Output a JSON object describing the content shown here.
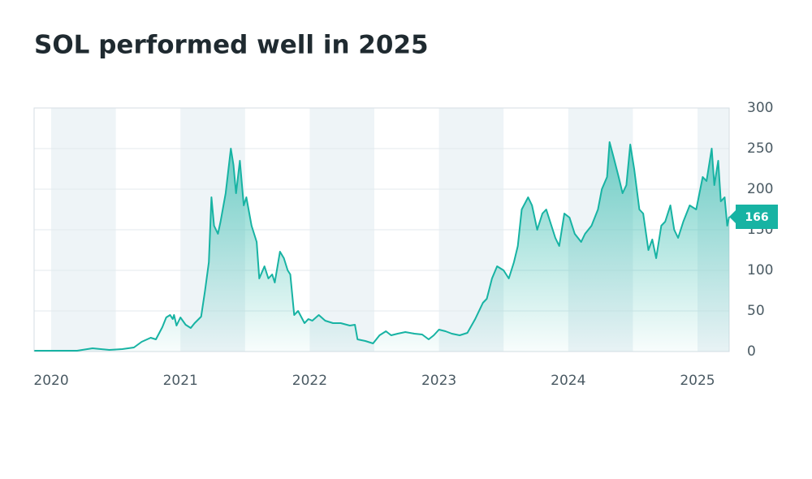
{
  "chart_data": {
    "type": "area",
    "title": "SOL performed well in 2025",
    "x": [
      2019.87,
      2020.0,
      2020.2,
      2020.32,
      2020.45,
      2020.55,
      2020.64,
      2020.7,
      2020.77,
      2020.81,
      2020.86,
      2020.89,
      2020.92,
      2020.94,
      2020.95,
      2020.97,
      2021.0,
      2021.04,
      2021.08,
      2021.11,
      2021.16,
      2021.19,
      2021.22,
      2021.24,
      2021.26,
      2021.29,
      2021.31,
      2021.35,
      2021.39,
      2021.41,
      2021.43,
      2021.46,
      2021.49,
      2021.51,
      2021.55,
      2021.59,
      2021.61,
      2021.65,
      2021.68,
      2021.71,
      2021.73,
      2021.77,
      2021.8,
      2021.83,
      2021.85,
      2021.88,
      2021.91,
      2021.96,
      2021.99,
      2022.02,
      2022.07,
      2022.12,
      2022.18,
      2022.24,
      2022.31,
      2022.35,
      2022.37,
      2022.43,
      2022.49,
      2022.54,
      2022.59,
      2022.63,
      2022.68,
      2022.74,
      2022.81,
      2022.87,
      2022.92,
      2022.96,
      2023.0,
      2023.05,
      2023.1,
      2023.16,
      2023.22,
      2023.28,
      2023.34,
      2023.37,
      2023.41,
      2023.45,
      2023.5,
      2023.54,
      2023.58,
      2023.61,
      2023.64,
      2023.69,
      2023.72,
      2023.76,
      2023.8,
      2023.83,
      2023.86,
      2023.9,
      2023.93,
      2023.97,
      2024.01,
      2024.05,
      2024.1,
      2024.13,
      2024.18,
      2024.23,
      2024.26,
      2024.3,
      2024.32,
      2024.35,
      2024.39,
      2024.42,
      2024.45,
      2024.48,
      2024.51,
      2024.55,
      2024.58,
      2024.62,
      2024.65,
      2024.68,
      2024.72,
      2024.75,
      2024.79,
      2024.82,
      2024.85,
      2024.89,
      2024.94,
      2024.99,
      2025.04,
      2025.07,
      2025.11,
      2025.13,
      2025.16,
      2025.18,
      2025.21,
      2025.23,
      2025.245
    ],
    "series": [
      {
        "name": "SOL",
        "color": "#17b3a3",
        "values": [
          1,
          1,
          1,
          4,
          2,
          3,
          5,
          12,
          17,
          15,
          30,
          42,
          45,
          40,
          45,
          32,
          42,
          33,
          29,
          35,
          43,
          75,
          110,
          190,
          155,
          145,
          160,
          195,
          250,
          230,
          195,
          235,
          180,
          190,
          155,
          135,
          90,
          105,
          90,
          95,
          85,
          123,
          115,
          100,
          95,
          45,
          50,
          35,
          40,
          38,
          45,
          38,
          35,
          35,
          32,
          33,
          15,
          13,
          10,
          20,
          25,
          20,
          22,
          24,
          22,
          21,
          15,
          20,
          27,
          25,
          22,
          20,
          23,
          40,
          60,
          65,
          90,
          105,
          100,
          90,
          110,
          130,
          175,
          190,
          180,
          150,
          170,
          175,
          160,
          140,
          130,
          170,
          165,
          145,
          135,
          145,
          155,
          175,
          200,
          215,
          258,
          240,
          215,
          195,
          205,
          255,
          225,
          175,
          170,
          125,
          138,
          115,
          155,
          160,
          180,
          150,
          140,
          160,
          180,
          175,
          215,
          210,
          250,
          205,
          235,
          185,
          190,
          155,
          166
        ]
      }
    ],
    "xlim": [
      2019.868,
      2025.245
    ],
    "xticks": [
      2020,
      2021,
      2022,
      2023,
      2024,
      2025
    ],
    "ylim": [
      0,
      300
    ],
    "yticks": [
      0,
      50,
      100,
      150,
      200,
      250,
      300
    ],
    "grid": true
  }
}
